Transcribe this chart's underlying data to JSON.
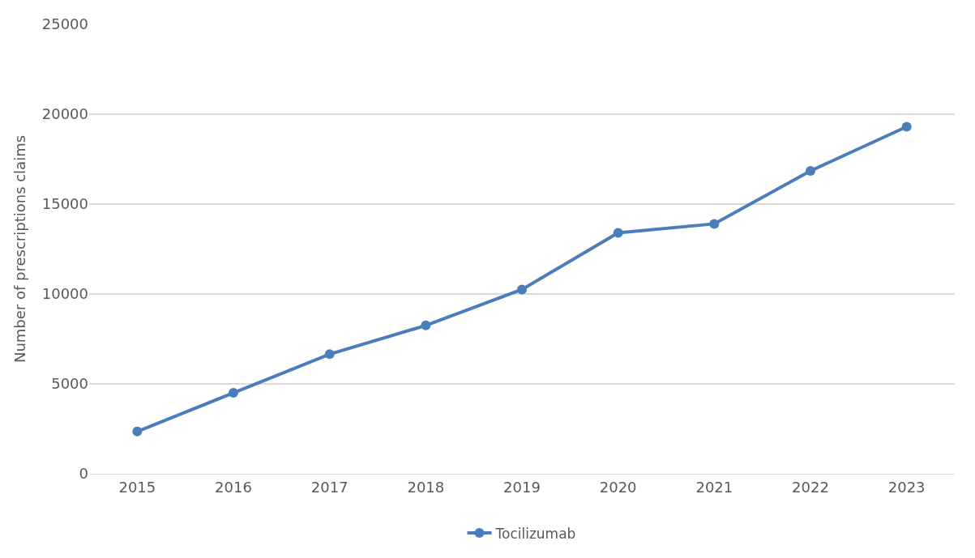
{
  "chart_data": {
    "type": "line",
    "ylabel": "Number of prescriptions claims",
    "categories": [
      "2015",
      "2016",
      "2017",
      "2018",
      "2019",
      "2020",
      "2021",
      "2022",
      "2023"
    ],
    "series": [
      {
        "name": "Tocilizumab",
        "color": "#4a7ebb",
        "values": [
          2350,
          4500,
          6650,
          8250,
          10250,
          13400,
          13900,
          16850,
          19300
        ]
      }
    ],
    "ylim": [
      0,
      25000
    ],
    "yticks": [
      0,
      5000,
      10000,
      15000,
      20000,
      25000
    ],
    "grid": "y",
    "legend": "bottom",
    "marker": "circle",
    "line_style": "solid"
  }
}
